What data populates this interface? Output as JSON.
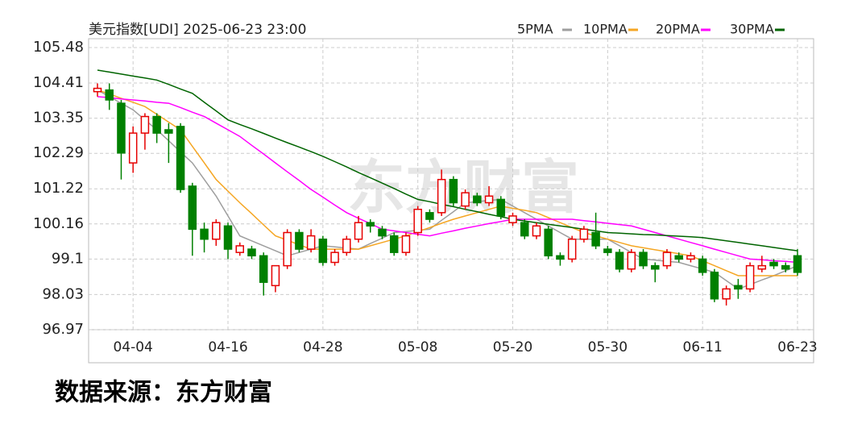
{
  "chart_data": {
    "type": "candlestick",
    "title": "美元指数[UDI] 2025-06-23 23:00",
    "watermark": "东方财富",
    "source": "数据来源：东方财富",
    "legend": "top-right",
    "grid": true,
    "up_color": "#e60000",
    "down_color": "#008000",
    "categories": [
      null,
      null,
      null,
      "04-04",
      null,
      null,
      null,
      null,
      null,
      null,
      null,
      "04-16",
      null,
      null,
      null,
      null,
      null,
      null,
      null,
      "04-28",
      null,
      null,
      null,
      null,
      null,
      null,
      null,
      "05-08",
      null,
      null,
      null,
      null,
      null,
      null,
      null,
      "05-20",
      null,
      null,
      null,
      null,
      null,
      null,
      null,
      "05-30",
      null,
      null,
      null,
      null,
      null,
      null,
      null,
      "06-11",
      null,
      null,
      null,
      null,
      null,
      null,
      null,
      "06-23"
    ],
    "open": [
      104.15,
      104.2,
      103.8,
      102.0,
      102.9,
      103.4,
      103.0,
      103.1,
      101.3,
      100.0,
      99.7,
      100.1,
      99.3,
      99.4,
      99.2,
      98.3,
      98.9,
      99.9,
      99.4,
      99.7,
      99.0,
      99.3,
      99.7,
      100.2,
      100.0,
      99.8,
      99.3,
      99.9,
      100.5,
      100.5,
      101.5,
      100.7,
      101.0,
      100.8,
      100.9,
      100.2,
      100.2,
      99.8,
      100.0,
      99.2,
      99.1,
      99.7,
      99.9,
      99.4,
      99.3,
      98.8,
      99.3,
      98.9,
      98.9,
      99.2,
      99.1,
      99.1,
      98.7,
      97.9,
      98.3,
      98.2,
      98.8,
      99.0,
      98.9,
      99.2
    ],
    "high": [
      104.4,
      104.4,
      103.9,
      103.1,
      103.5,
      103.5,
      103.2,
      103.2,
      101.4,
      100.2,
      100.3,
      100.2,
      99.6,
      99.5,
      99.3,
      98.9,
      100.0,
      100.0,
      100.0,
      99.8,
      99.4,
      99.8,
      100.4,
      100.3,
      100.1,
      99.9,
      99.9,
      100.7,
      100.6,
      101.8,
      101.6,
      101.2,
      101.1,
      101.3,
      101.0,
      100.5,
      100.3,
      100.2,
      100.1,
      99.3,
      99.8,
      100.1,
      100.5,
      99.5,
      99.4,
      99.4,
      99.4,
      99.0,
      99.4,
      99.3,
      99.3,
      99.2,
      98.8,
      98.3,
      98.5,
      99.0,
      99.2,
      99.1,
      99.0,
      99.4
    ],
    "low": [
      104.0,
      103.6,
      101.5,
      101.7,
      102.4,
      102.6,
      102.0,
      101.1,
      99.2,
      99.3,
      99.5,
      99.1,
      99.2,
      99.1,
      98.0,
      98.1,
      98.8,
      99.3,
      99.3,
      98.9,
      98.9,
      99.2,
      99.6,
      99.9,
      99.7,
      99.2,
      99.2,
      99.8,
      100.2,
      100.4,
      100.7,
      100.6,
      100.7,
      100.7,
      100.3,
      100.1,
      99.7,
      99.7,
      99.1,
      98.9,
      99.0,
      99.6,
      99.4,
      99.2,
      98.7,
      98.7,
      98.8,
      98.4,
      98.8,
      99.0,
      99.0,
      98.6,
      97.8,
      97.7,
      97.9,
      98.1,
      98.7,
      98.8,
      98.7,
      98.6
    ],
    "close": [
      104.25,
      103.9,
      102.3,
      102.9,
      103.4,
      102.9,
      102.9,
      101.2,
      100.0,
      99.7,
      100.2,
      99.4,
      99.5,
      99.2,
      98.4,
      98.9,
      99.9,
      99.4,
      99.8,
      99.0,
      99.3,
      99.7,
      100.2,
      100.1,
      99.8,
      99.3,
      99.8,
      100.6,
      100.3,
      101.5,
      100.8,
      101.1,
      100.8,
      101.0,
      100.4,
      100.4,
      99.8,
      100.1,
      99.2,
      99.1,
      99.7,
      100.0,
      99.5,
      99.3,
      98.8,
      99.3,
      98.9,
      98.8,
      99.3,
      99.1,
      99.2,
      98.7,
      97.9,
      98.2,
      98.2,
      98.9,
      98.9,
      98.9,
      98.8,
      98.7
    ],
    "series": [
      {
        "name": "5PMA",
        "color": "#9e9e9e",
        "values": [
          104.2,
          104.0,
          103.8,
          103.6,
          103.3,
          103.0,
          102.67,
          102.33,
          102.0,
          101.5,
          101.0,
          100.4,
          99.8,
          99.65,
          99.5,
          99.35,
          99.2,
          99.3,
          99.4,
          99.5,
          99.47,
          99.43,
          99.4,
          99.57,
          99.73,
          99.9,
          99.93,
          99.97,
          100.0,
          100.27,
          100.53,
          100.8,
          100.83,
          100.87,
          100.9,
          100.7,
          100.5,
          100.3,
          100.1,
          99.9,
          99.7,
          99.7,
          99.7,
          99.7,
          99.5,
          99.3,
          99.1,
          99.07,
          99.03,
          99.0,
          98.9,
          98.8,
          98.7,
          98.45,
          98.2,
          98.33,
          98.47,
          98.6,
          98.75,
          98.9
        ]
      },
      {
        "name": "10PMA",
        "color": "#f5a623",
        "values": [
          104.2,
          104.08,
          103.95,
          103.83,
          103.7,
          103.47,
          103.23,
          103.0,
          102.5,
          102.0,
          101.5,
          101.15,
          100.8,
          100.47,
          100.13,
          99.8,
          99.67,
          99.53,
          99.4,
          99.4,
          99.4,
          99.4,
          99.4,
          99.5,
          99.6,
          99.7,
          99.8,
          99.93,
          100.05,
          100.18,
          100.3,
          100.4,
          100.5,
          100.6,
          100.7,
          100.63,
          100.57,
          100.5,
          100.35,
          100.2,
          100.05,
          99.9,
          99.8,
          99.7,
          99.6,
          99.5,
          99.44,
          99.38,
          99.32,
          99.26,
          99.2,
          99.05,
          98.9,
          98.75,
          98.6,
          98.6,
          98.6,
          98.6,
          98.6,
          98.6
        ]
      },
      {
        "name": "20PMA",
        "color": "#ff00ff",
        "values": [
          104.0,
          103.97,
          103.93,
          103.9,
          103.87,
          103.83,
          103.8,
          103.67,
          103.53,
          103.4,
          103.2,
          103.0,
          102.8,
          102.53,
          102.27,
          102.0,
          101.73,
          101.47,
          101.2,
          100.97,
          100.73,
          100.5,
          100.33,
          100.17,
          100.0,
          99.95,
          99.9,
          99.85,
          99.8,
          99.88,
          99.95,
          100.03,
          100.1,
          100.17,
          100.23,
          100.3,
          100.3,
          100.3,
          100.3,
          100.3,
          100.3,
          100.26,
          100.22,
          100.18,
          100.14,
          100.1,
          100.0,
          99.9,
          99.8,
          99.7,
          99.6,
          99.5,
          99.4,
          99.3,
          99.2,
          99.1,
          99.08,
          99.05,
          99.03,
          99.0
        ]
      },
      {
        "name": "30PMA",
        "color": "#006400",
        "values": [
          104.8,
          104.74,
          104.68,
          104.62,
          104.56,
          104.5,
          104.37,
          104.23,
          104.1,
          103.83,
          103.57,
          103.3,
          103.16,
          103.03,
          102.89,
          102.75,
          102.61,
          102.48,
          102.34,
          102.2,
          102.04,
          101.88,
          101.71,
          101.55,
          101.39,
          101.23,
          101.06,
          100.9,
          100.83,
          100.75,
          100.68,
          100.6,
          100.53,
          100.45,
          100.38,
          100.3,
          100.25,
          100.2,
          100.15,
          100.1,
          100.05,
          100.0,
          99.95,
          99.9,
          99.88,
          99.86,
          99.84,
          99.83,
          99.81,
          99.79,
          99.77,
          99.75,
          99.7,
          99.65,
          99.6,
          99.55,
          99.5,
          99.45,
          99.4,
          99.35
        ]
      }
    ],
    "ylim": [
      96.97,
      105.48
    ],
    "yticks": [
      105.48,
      104.41,
      103.35,
      102.29,
      101.22,
      100.16,
      99.1,
      98.03,
      96.97
    ]
  }
}
